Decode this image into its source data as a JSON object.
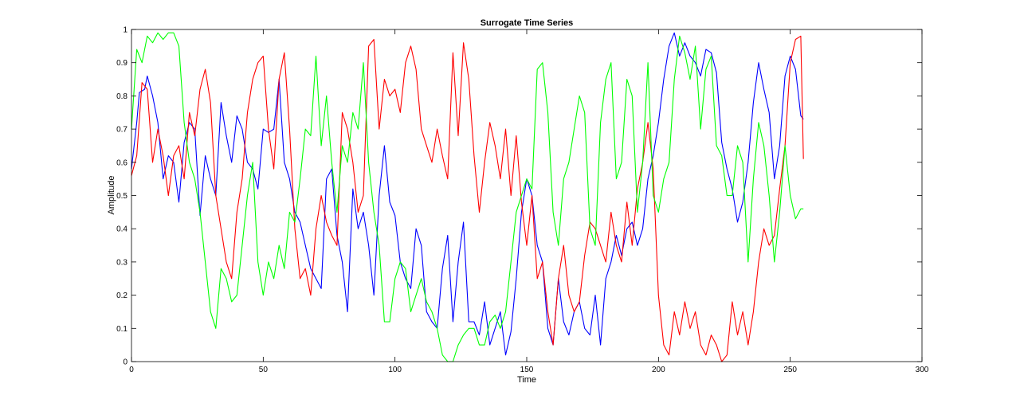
{
  "chart_data": {
    "type": "line",
    "title": "Surrogate Time Series",
    "xlabel": "Time",
    "ylabel": "Amplitude",
    "xlim": [
      0,
      300
    ],
    "ylim": [
      0,
      1
    ],
    "xticks": [
      0,
      50,
      100,
      150,
      200,
      250,
      300
    ],
    "yticks": [
      0,
      0.1,
      0.2,
      0.3,
      0.4,
      0.5,
      0.6,
      0.7,
      0.8,
      0.9,
      1
    ],
    "xtick_labels": [
      "0",
      "50",
      "100",
      "150",
      "200",
      "250",
      "300"
    ],
    "ytick_labels": [
      "0",
      "0.1",
      "0.2",
      "0.3",
      "0.4",
      "0.5",
      "0.6",
      "0.7",
      "0.8",
      "0.9",
      "1"
    ],
    "grid": false,
    "legend": "none",
    "series": [
      {
        "color": "#0000ff",
        "x": [
          0,
          2,
          3,
          5,
          6,
          8,
          10,
          12,
          14,
          16,
          18,
          20,
          22,
          24,
          26,
          28,
          30,
          32,
          34,
          36,
          38,
          40,
          42,
          44,
          46,
          48,
          50,
          52,
          54,
          56,
          58,
          60,
          62,
          64,
          66,
          68,
          70,
          72,
          74,
          76,
          78,
          80,
          82,
          84,
          86,
          88,
          90,
          92,
          94,
          96,
          98,
          100,
          102,
          104,
          106,
          108,
          110,
          112,
          114,
          116,
          118,
          120,
          122,
          124,
          126,
          128,
          130,
          132,
          134,
          136,
          138,
          140,
          142,
          144,
          146,
          148,
          150,
          152,
          154,
          156,
          158,
          160,
          162,
          164,
          166,
          168,
          170,
          172,
          174,
          176,
          178,
          180,
          182,
          184,
          186,
          188,
          190,
          192,
          194,
          196,
          198,
          200,
          202,
          204,
          206,
          208,
          210,
          212,
          214,
          216,
          218,
          220,
          222,
          224,
          226,
          228,
          230,
          232,
          234,
          236,
          238,
          240,
          242,
          244,
          246,
          248,
          250,
          252,
          254,
          255
        ],
        "y": [
          0.58,
          0.72,
          0.81,
          0.82,
          0.86,
          0.8,
          0.72,
          0.55,
          0.62,
          0.6,
          0.48,
          0.66,
          0.72,
          0.7,
          0.44,
          0.62,
          0.55,
          0.5,
          0.78,
          0.68,
          0.6,
          0.74,
          0.7,
          0.6,
          0.58,
          0.52,
          0.7,
          0.69,
          0.7,
          0.85,
          0.6,
          0.55,
          0.45,
          0.42,
          0.35,
          0.28,
          0.25,
          0.22,
          0.55,
          0.58,
          0.38,
          0.3,
          0.15,
          0.52,
          0.4,
          0.45,
          0.35,
          0.2,
          0.5,
          0.65,
          0.48,
          0.44,
          0.3,
          0.25,
          0.22,
          0.4,
          0.35,
          0.15,
          0.12,
          0.1,
          0.28,
          0.38,
          0.12,
          0.3,
          0.42,
          0.12,
          0.12,
          0.08,
          0.18,
          0.05,
          0.1,
          0.15,
          0.02,
          0.09,
          0.25,
          0.45,
          0.55,
          0.5,
          0.35,
          0.3,
          0.1,
          0.05,
          0.25,
          0.12,
          0.08,
          0.15,
          0.18,
          0.1,
          0.08,
          0.2,
          0.05,
          0.25,
          0.3,
          0.38,
          0.32,
          0.4,
          0.42,
          0.35,
          0.4,
          0.55,
          0.62,
          0.72,
          0.85,
          0.95,
          0.99,
          0.92,
          0.96,
          0.92,
          0.9,
          0.86,
          0.94,
          0.93,
          0.87,
          0.66,
          0.58,
          0.52,
          0.42,
          0.48,
          0.6,
          0.78,
          0.9,
          0.82,
          0.75,
          0.55,
          0.65,
          0.86,
          0.92,
          0.88,
          0.74,
          0.73
        ]
      },
      {
        "color": "#ff0000",
        "x": [
          0,
          2,
          4,
          6,
          8,
          10,
          12,
          14,
          16,
          18,
          20,
          22,
          24,
          26,
          28,
          30,
          32,
          34,
          36,
          38,
          40,
          42,
          44,
          46,
          48,
          50,
          52,
          54,
          56,
          58,
          60,
          62,
          64,
          66,
          68,
          70,
          72,
          74,
          76,
          78,
          80,
          82,
          84,
          86,
          88,
          90,
          92,
          94,
          96,
          98,
          100,
          102,
          104,
          106,
          108,
          110,
          112,
          114,
          116,
          118,
          120,
          122,
          124,
          126,
          128,
          130,
          132,
          134,
          136,
          138,
          140,
          142,
          144,
          146,
          148,
          150,
          152,
          154,
          156,
          158,
          160,
          162,
          164,
          166,
          168,
          170,
          172,
          174,
          176,
          178,
          180,
          182,
          184,
          186,
          188,
          190,
          192,
          194,
          196,
          198,
          200,
          202,
          204,
          206,
          208,
          210,
          212,
          214,
          216,
          218,
          220,
          222,
          224,
          226,
          228,
          230,
          232,
          234,
          236,
          238,
          240,
          242,
          244,
          246,
          248,
          250,
          252,
          254,
          255
        ],
        "y": [
          0.56,
          0.62,
          0.84,
          0.82,
          0.6,
          0.7,
          0.62,
          0.5,
          0.62,
          0.65,
          0.55,
          0.75,
          0.68,
          0.82,
          0.88,
          0.78,
          0.5,
          0.4,
          0.3,
          0.25,
          0.45,
          0.55,
          0.75,
          0.85,
          0.9,
          0.92,
          0.7,
          0.58,
          0.85,
          0.93,
          0.7,
          0.4,
          0.25,
          0.28,
          0.2,
          0.4,
          0.5,
          0.42,
          0.38,
          0.35,
          0.75,
          0.7,
          0.6,
          0.45,
          0.5,
          0.95,
          0.97,
          0.7,
          0.85,
          0.8,
          0.82,
          0.75,
          0.9,
          0.95,
          0.88,
          0.7,
          0.65,
          0.6,
          0.7,
          0.62,
          0.55,
          0.93,
          0.68,
          0.96,
          0.85,
          0.62,
          0.45,
          0.6,
          0.72,
          0.65,
          0.55,
          0.7,
          0.5,
          0.68,
          0.48,
          0.35,
          0.5,
          0.25,
          0.3,
          0.15,
          0.05,
          0.25,
          0.35,
          0.2,
          0.15,
          0.18,
          0.32,
          0.42,
          0.4,
          0.35,
          0.3,
          0.45,
          0.35,
          0.3,
          0.48,
          0.35,
          0.52,
          0.6,
          0.72,
          0.58,
          0.2,
          0.05,
          0.02,
          0.15,
          0.08,
          0.18,
          0.1,
          0.15,
          0.05,
          0.02,
          0.08,
          0.05,
          0.0,
          0.02,
          0.18,
          0.08,
          0.15,
          0.05,
          0.15,
          0.3,
          0.4,
          0.35,
          0.38,
          0.52,
          0.65,
          0.9,
          0.97,
          0.98,
          0.61
        ]
      },
      {
        "color": "#00ff00",
        "x": [
          0,
          2,
          4,
          6,
          8,
          10,
          12,
          14,
          16,
          18,
          20,
          22,
          24,
          26,
          28,
          30,
          32,
          34,
          36,
          38,
          40,
          42,
          44,
          46,
          48,
          50,
          52,
          54,
          56,
          58,
          60,
          62,
          64,
          66,
          68,
          70,
          72,
          74,
          76,
          78,
          80,
          82,
          84,
          86,
          88,
          90,
          92,
          94,
          96,
          98,
          100,
          102,
          104,
          106,
          108,
          110,
          112,
          114,
          116,
          118,
          120,
          122,
          124,
          126,
          128,
          130,
          132,
          134,
          136,
          138,
          140,
          142,
          144,
          146,
          148,
          150,
          152,
          154,
          156,
          158,
          160,
          162,
          164,
          166,
          168,
          170,
          172,
          174,
          176,
          178,
          180,
          182,
          184,
          186,
          188,
          190,
          192,
          194,
          196,
          198,
          200,
          202,
          204,
          206,
          208,
          210,
          212,
          214,
          216,
          218,
          220,
          222,
          224,
          226,
          228,
          230,
          232,
          234,
          236,
          238,
          240,
          242,
          244,
          246,
          248,
          250,
          252,
          254,
          255
        ],
        "y": [
          0.7,
          0.94,
          0.9,
          0.98,
          0.96,
          0.99,
          0.97,
          0.99,
          0.99,
          0.95,
          0.72,
          0.6,
          0.55,
          0.45,
          0.3,
          0.15,
          0.1,
          0.28,
          0.25,
          0.18,
          0.2,
          0.35,
          0.5,
          0.6,
          0.3,
          0.2,
          0.3,
          0.25,
          0.35,
          0.28,
          0.45,
          0.42,
          0.55,
          0.7,
          0.68,
          0.92,
          0.65,
          0.8,
          0.6,
          0.45,
          0.65,
          0.6,
          0.75,
          0.7,
          0.9,
          0.6,
          0.45,
          0.35,
          0.12,
          0.12,
          0.25,
          0.3,
          0.28,
          0.15,
          0.2,
          0.25,
          0.18,
          0.15,
          0.1,
          0.02,
          0.0,
          0.0,
          0.05,
          0.08,
          0.1,
          0.1,
          0.05,
          0.05,
          0.12,
          0.14,
          0.1,
          0.15,
          0.3,
          0.45,
          0.5,
          0.55,
          0.52,
          0.88,
          0.9,
          0.75,
          0.45,
          0.35,
          0.55,
          0.6,
          0.7,
          0.8,
          0.75,
          0.4,
          0.35,
          0.72,
          0.85,
          0.9,
          0.55,
          0.6,
          0.85,
          0.8,
          0.45,
          0.6,
          0.9,
          0.5,
          0.45,
          0.55,
          0.6,
          0.85,
          0.98,
          0.93,
          0.85,
          0.95,
          0.7,
          0.88,
          0.92,
          0.65,
          0.62,
          0.5,
          0.5,
          0.65,
          0.6,
          0.3,
          0.55,
          0.72,
          0.65,
          0.5,
          0.3,
          0.45,
          0.65,
          0.5,
          0.43,
          0.46,
          0.46
        ]
      }
    ]
  }
}
